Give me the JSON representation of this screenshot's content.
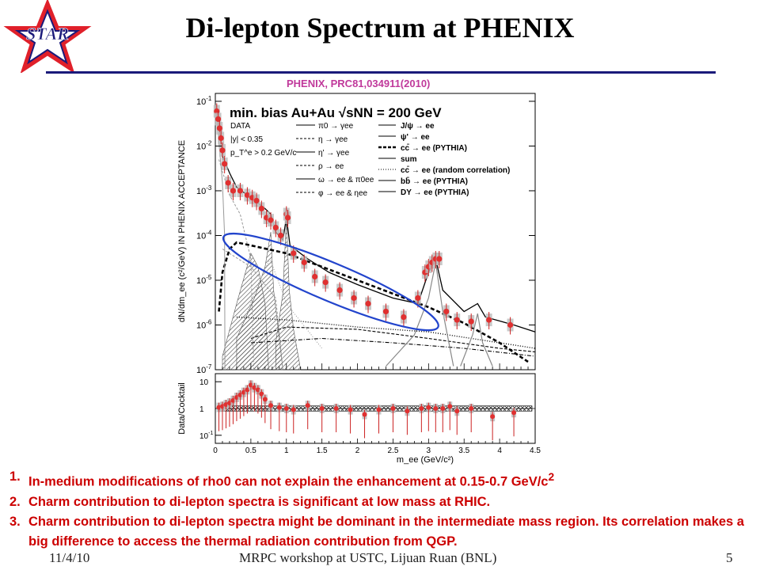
{
  "slide": {
    "title": "Di-lepton Spectrum at PHENIX",
    "logo_text": "STAR",
    "citation": "PHENIX, PRC81,034911(2010)",
    "footer_date": "11/4/10",
    "footer_center": "MRPC workshop at USTC, Lijuan Ruan (BNL)",
    "page_number": "5",
    "accent_colors": {
      "logo_red": "#e0202a",
      "title_rule": "#1a1a7a",
      "notes_red": "#cc0000",
      "citation": "#c0399b",
      "ellipse": "#2244cc"
    }
  },
  "notes": [
    {
      "num": "1.",
      "text": "In-medium modifications of rho0 can not explain the enhancement at 0.15-0.7 GeV/c",
      "sup": "2"
    },
    {
      "num": "2.",
      "text": "Charm contribution to di-lepton spectra is significant at low mass at RHIC.",
      "sup": ""
    },
    {
      "num": "3.",
      "text": "Charm contribution to di-lepton spectra might be dominant in the intermediate mass region. Its correlation makes a big difference to access the thermal radiation contribution from QGP.",
      "sup": ""
    }
  ],
  "chart_data": [
    {
      "type": "scatter",
      "panel": "spectrum",
      "title": "min. bias Au+Au √sNN = 200 GeV",
      "legend_left": [
        "DATA",
        "|y| < 0.35",
        "p_T^e > 0.2 GeV/c"
      ],
      "legend_mid": [
        "π0 → γee",
        "η → γee",
        "η' → γee",
        "ρ → ee",
        "ω → ee & π0ee",
        "φ → ee & ηee"
      ],
      "legend_right": [
        "J/ψ → ee",
        "ψ' → ee",
        "cc̄ → ee (PYTHIA)",
        "sum",
        "cc̄ → ee (random correlation)",
        "bb̄ → ee (PYTHIA)",
        "DY → ee (PYTHIA)"
      ],
      "xlabel": "m_ee (GeV/c²)",
      "ylabel": "dN/dm_ee (c²/GeV) IN PHENIX ACCEPTANCE",
      "log_y": true,
      "xlim": [
        0,
        4.5
      ],
      "ylim": [
        1e-07,
        0.15
      ],
      "ytick_labels": [
        "10-7",
        "10-6",
        "10-5",
        "10-4",
        "10-3",
        "10-2",
        "10-1"
      ],
      "xtick_labels": [
        "0",
        "0.5",
        "1",
        "1.5",
        "2",
        "2.5",
        "3",
        "3.5",
        "4",
        "4.5"
      ],
      "x": [
        0.02,
        0.04,
        0.06,
        0.08,
        0.1,
        0.13,
        0.18,
        0.25,
        0.35,
        0.45,
        0.52,
        0.58,
        0.65,
        0.72,
        0.78,
        0.85,
        0.92,
        1.0,
        1.02,
        1.1,
        1.25,
        1.4,
        1.55,
        1.75,
        1.95,
        2.15,
        2.4,
        2.65,
        2.85,
        2.95,
        3.0,
        3.05,
        3.1,
        3.15,
        3.25,
        3.4,
        3.6,
        3.85,
        4.15
      ],
      "y": [
        0.06,
        0.04,
        0.025,
        0.015,
        0.008,
        0.004,
        0.0015,
        0.001,
        0.001,
        0.0008,
        0.0007,
        0.0006,
        0.0004,
        0.00025,
        0.00022,
        0.00015,
        0.0001,
        0.0003,
        0.00025,
        4e-05,
        2.5e-05,
        1.2e-05,
        9e-06,
        6e-06,
        4e-06,
        3e-06,
        2e-06,
        1.5e-06,
        4e-06,
        1.5e-05,
        2e-05,
        2.5e-05,
        3e-05,
        3e-05,
        2e-06,
        1.3e-06,
        1.2e-06,
        1.3e-06,
        1e-06
      ],
      "curves": [
        {
          "name": "sum",
          "style": "solid",
          "points": [
            [
              0.03,
              0.06
            ],
            [
              0.1,
              0.006
            ],
            [
              0.2,
              0.0025
            ],
            [
              0.3,
              0.0012
            ],
            [
              0.5,
              0.0007
            ],
            [
              0.7,
              0.0004
            ],
            [
              0.78,
              0.0003
            ],
            [
              0.85,
              0.00012
            ],
            [
              0.95,
              8e-05
            ],
            [
              1.0,
              0.00025
            ],
            [
              1.05,
              6e-05
            ],
            [
              1.3,
              3e-05
            ],
            [
              1.6,
              1.5e-05
            ],
            [
              2.0,
              8e-06
            ],
            [
              2.5,
              4e-06
            ],
            [
              2.85,
              3e-06
            ],
            [
              3.0,
              1.5e-05
            ],
            [
              3.1,
              3e-05
            ],
            [
              3.2,
              6e-06
            ],
            [
              3.5,
              2e-06
            ],
            [
              3.69,
              3e-06
            ],
            [
              3.8,
              1.5e-06
            ],
            [
              4.2,
              1e-06
            ],
            [
              4.5,
              7e-07
            ]
          ]
        },
        {
          "name": "cc̄ → ee (PYTHIA)",
          "style": "thick-dash",
          "points": [
            [
              0.05,
              2e-06
            ],
            [
              0.1,
              1.5e-05
            ],
            [
              0.2,
              5e-05
            ],
            [
              0.3,
              7e-05
            ],
            [
              0.5,
              6e-05
            ],
            [
              1.0,
              4e-05
            ],
            [
              1.5,
              2e-05
            ],
            [
              2.0,
              1e-05
            ],
            [
              2.5,
              5e-06
            ],
            [
              3.0,
              2.5e-06
            ],
            [
              3.5,
              1.1e-06
            ],
            [
              4.0,
              4e-07
            ],
            [
              4.4,
              1.5e-07
            ]
          ]
        },
        {
          "name": "cc̄ → ee (random correlation)",
          "style": "dotted",
          "points": [
            [
              0.3,
              1.5e-06
            ],
            [
              1.0,
              1.3e-06
            ],
            [
              2.0,
              9e-07
            ],
            [
              3.0,
              7e-07
            ],
            [
              4.0,
              4e-07
            ],
            [
              4.5,
              3e-07
            ]
          ]
        },
        {
          "name": "bb̄ → ee (PYTHIA)",
          "style": "dash",
          "points": [
            [
              0.5,
              5e-07
            ],
            [
              1.0,
              9e-07
            ],
            [
              2.0,
              8e-07
            ],
            [
              3.0,
              5e-07
            ],
            [
              4.0,
              3e-07
            ],
            [
              4.5,
              2.5e-07
            ]
          ]
        },
        {
          "name": "DY → ee (PYTHIA)",
          "style": "dash-dot",
          "points": [
            [
              0.5,
              4e-07
            ],
            [
              1.5,
              5e-07
            ],
            [
              2.5,
              4e-07
            ],
            [
              3.5,
              3e-07
            ],
            [
              4.5,
              2e-07
            ]
          ]
        },
        {
          "name": "J/ψ → ee",
          "style": "solid-grey",
          "points": [
            [
              2.4,
              1.2e-07
            ],
            [
              2.8,
              6e-07
            ],
            [
              3.0,
              4e-06
            ],
            [
              3.1,
              2.5e-05
            ],
            [
              3.2,
              2e-06
            ],
            [
              3.35,
              1.2e-07
            ]
          ]
        },
        {
          "name": "ψ' → ee",
          "style": "solid-grey",
          "points": [
            [
              3.45,
              1.2e-07
            ],
            [
              3.62,
              6e-07
            ],
            [
              3.69,
              1.8e-06
            ],
            [
              3.76,
              4e-07
            ],
            [
              3.9,
              1.2e-07
            ]
          ]
        },
        {
          "name": "π0 → γee",
          "style": "grey",
          "points": [
            [
              0.02,
              0.04
            ],
            [
              0.06,
              0.008
            ],
            [
              0.1,
              0.0015
            ],
            [
              0.13,
              0.0001
            ],
            [
              0.135,
              1e-07
            ]
          ]
        },
        {
          "name": "η → γee",
          "style": "grey-dash",
          "points": [
            [
              0.05,
              0.005
            ],
            [
              0.2,
              0.0008
            ],
            [
              0.35,
              0.0003
            ],
            [
              0.5,
              3e-05
            ],
            [
              0.54,
              1e-07
            ]
          ]
        },
        {
          "name": "η' → γee",
          "style": "grey-dash",
          "points": [
            [
              0.1,
              5e-05
            ],
            [
              0.5,
              2e-05
            ],
            [
              0.85,
              4e-06
            ],
            [
              0.95,
              1e-07
            ]
          ]
        },
        {
          "name": "ρ → ee",
          "style": "grey-dot",
          "points": [
            [
              0.3,
              5e-07
            ],
            [
              0.6,
              8e-06
            ],
            [
              0.77,
              3e-05
            ],
            [
              1.0,
              3e-06
            ],
            [
              1.5,
              3e-07
            ]
          ]
        }
      ],
      "annotation": "blue ellipse around intermediate-mass region (~0.3–2.9 GeV/c²)"
    },
    {
      "type": "scatter",
      "panel": "ratio",
      "xlabel": "m_ee (GeV/c²)",
      "ylabel": "Data/Cocktail",
      "log_y": true,
      "xlim": [
        0,
        4.5
      ],
      "ylim": [
        0.05,
        20
      ],
      "ytick_labels": [
        "10",
        "1",
        "10-1"
      ],
      "x": [
        0.05,
        0.1,
        0.15,
        0.2,
        0.25,
        0.3,
        0.35,
        0.4,
        0.45,
        0.5,
        0.55,
        0.6,
        0.65,
        0.7,
        0.78,
        0.9,
        1.0,
        1.1,
        1.3,
        1.5,
        1.7,
        1.9,
        2.1,
        2.3,
        2.5,
        2.7,
        2.9,
        3.0,
        3.1,
        3.2,
        3.3,
        3.4,
        3.6,
        3.9,
        4.2
      ],
      "values": [
        1.1,
        1.2,
        1.4,
        1.6,
        2.0,
        2.6,
        3.2,
        4.0,
        5.0,
        7.5,
        6.0,
        5.0,
        3.5,
        2.2,
        1.3,
        1.1,
        1.0,
        0.9,
        1.3,
        1.0,
        1.0,
        0.9,
        0.6,
        0.9,
        1.0,
        0.8,
        1.0,
        1.1,
        1.0,
        1.0,
        1.2,
        0.8,
        1.0,
        0.5,
        0.7
      ]
    }
  ]
}
